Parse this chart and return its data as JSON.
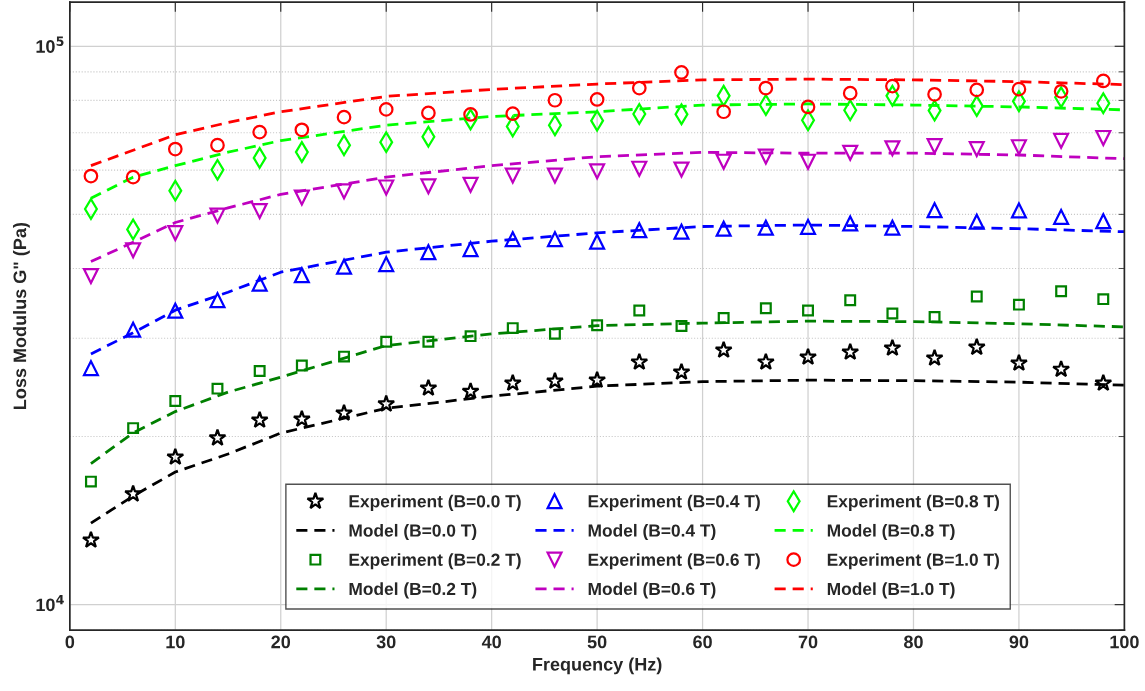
{
  "chart_data": {
    "type": "scatter",
    "xlabel": "Frequency (Hz)",
    "ylabel": "Loss Modulus G\" (Pa)",
    "log": "y",
    "xlim": [
      0,
      100
    ],
    "xticks": [
      0,
      10,
      20,
      30,
      40,
      50,
      60,
      70,
      80,
      90,
      100
    ],
    "ylim": [
      9000,
      120000
    ],
    "yticks": [
      {
        "value": 10000,
        "label": "10$^{4}$"
      },
      {
        "value": 100000,
        "label": "10$^{5}$"
      }
    ],
    "grid": true,
    "legend": "bottom right",
    "x": [
      2,
      6,
      10,
      14,
      18,
      22,
      26,
      30,
      34,
      38,
      42,
      46,
      50,
      54,
      58,
      62,
      66,
      70,
      74,
      78,
      82,
      86,
      90,
      94,
      98
    ],
    "series": [
      {
        "name": "Experiment (B=0.0 T)",
        "marker": "star",
        "color": "#000000",
        "values": [
          13050,
          15780,
          18370,
          19880,
          21400,
          21490,
          22030,
          22870,
          24420,
          24100,
          24920,
          25130,
          25230,
          27190,
          26090,
          28560,
          27190,
          27750,
          28320,
          28800,
          27630,
          28900,
          27070,
          26390,
          24920
        ]
      },
      {
        "name": "Model (B=0.0 T)",
        "type": "line",
        "line_style": "dashed",
        "color": "#000000",
        "x": [
          2,
          6,
          10,
          15,
          20,
          30,
          40,
          50,
          60,
          70,
          80,
          90,
          100
        ],
        "values": [
          14000,
          15650,
          17280,
          18610,
          20290,
          22470,
          23620,
          24620,
          25080,
          25240,
          25180,
          25030,
          24720
        ]
      },
      {
        "name": "Experiment (B=0.2 T)",
        "marker": "square",
        "color": "#008000",
        "values": [
          16610,
          20710,
          23150,
          24370,
          26200,
          26810,
          27810,
          29580,
          29580,
          30260,
          31280,
          30570,
          31660,
          33630,
          31550,
          32620,
          33960,
          33630,
          35100,
          33230,
          32740,
          35640,
          34460,
          36420,
          35250
        ]
      },
      {
        "name": "Model (B=0.2 T)",
        "type": "line",
        "line_style": "dashed",
        "color": "#008000",
        "x": [
          2,
          6,
          10,
          15,
          20,
          30,
          40,
          50,
          60,
          70,
          80,
          90,
          100
        ],
        "values": [
          17890,
          20310,
          22170,
          24020,
          25550,
          29110,
          30540,
          31600,
          31930,
          32190,
          32130,
          31840,
          31440
        ]
      },
      {
        "name": "Experiment (B=0.4 T)",
        "marker": "triangle",
        "color": "#0000ff",
        "values": [
          26520,
          31070,
          33600,
          35100,
          37570,
          38900,
          40280,
          40730,
          42780,
          43320,
          45140,
          45140,
          44670,
          46840,
          46550,
          47130,
          47340,
          47480,
          48150,
          47340,
          50860,
          48510,
          50810,
          49480,
          48610
        ]
      },
      {
        "name": "Model (B=0.4 T)",
        "type": "line",
        "line_style": "dashed",
        "color": "#0000ff",
        "x": [
          2,
          6,
          10,
          15,
          20,
          30,
          40,
          50,
          60,
          70,
          80,
          90,
          100
        ],
        "values": [
          28120,
          30680,
          33680,
          36270,
          39390,
          42780,
          44760,
          46330,
          47560,
          47860,
          47560,
          47130,
          46550
        ]
      },
      {
        "name": "Experiment (B=0.6 T)",
        "marker": "triangle_down",
        "color": "#bf00bf",
        "values": [
          38780,
          43130,
          46270,
          49750,
          50700,
          53600,
          54970,
          55870,
          56110,
          56480,
          58670,
          58670,
          59690,
          60360,
          60170,
          62130,
          63470,
          62130,
          64460,
          65660,
          66260,
          65450,
          65960,
          67700,
          68520
        ]
      },
      {
        "name": "Model (B=0.6 T)",
        "type": "line",
        "line_style": "dashed",
        "color": "#bf00bf",
        "x": [
          2,
          6,
          10,
          15,
          20,
          30,
          40,
          50,
          60,
          70,
          80,
          90,
          100
        ],
        "values": [
          41150,
          44580,
          48350,
          51350,
          54300,
          58290,
          61130,
          63430,
          64560,
          64360,
          64360,
          63870,
          62900
        ]
      },
      {
        "name": "Experiment (B=0.8 T)",
        "marker": "diamond",
        "color": "#00ff00",
        "values": [
          51120,
          46990,
          55140,
          60070,
          63110,
          64640,
          66500,
          67350,
          68870,
          73960,
          71850,
          72210,
          73590,
          75650,
          75530,
          81520,
          78480,
          73710,
          76820,
          81520,
          76700,
          78140,
          79700,
          81050,
          79070
        ]
      },
      {
        "name": "Model (B=0.8 T)",
        "type": "line",
        "line_style": "dashed",
        "color": "#00ff00",
        "x": [
          2,
          6,
          10,
          15,
          20,
          30,
          40,
          50,
          60,
          70,
          80,
          90,
          100
        ],
        "values": [
          53450,
          58290,
          61130,
          64610,
          67770,
          72210,
          74870,
          76340,
          78480,
          78840,
          78480,
          77870,
          76930
        ]
      },
      {
        "name": "Experiment (B=1.0 T)",
        "marker": "circle",
        "color": "#ff0000",
        "values": [
          58560,
          58300,
          65460,
          66500,
          70200,
          70870,
          74660,
          77080,
          75970,
          75490,
          75720,
          80050,
          80320,
          84190,
          89770,
          76340,
          84190,
          77870,
          82410,
          84850,
          82030,
          83560,
          83800,
          83050,
          86680
        ]
      },
      {
        "name": "Model (B=1.0 T)",
        "type": "line",
        "line_style": "dashed",
        "color": "#ff0000",
        "x": [
          2,
          6,
          10,
          15,
          20,
          30,
          40,
          50,
          60,
          70,
          80,
          90,
          100
        ],
        "values": [
          61130,
          65140,
          69410,
          73020,
          76340,
          81330,
          83710,
          85580,
          87080,
          87340,
          87080,
          86420,
          85380
        ]
      }
    ]
  }
}
